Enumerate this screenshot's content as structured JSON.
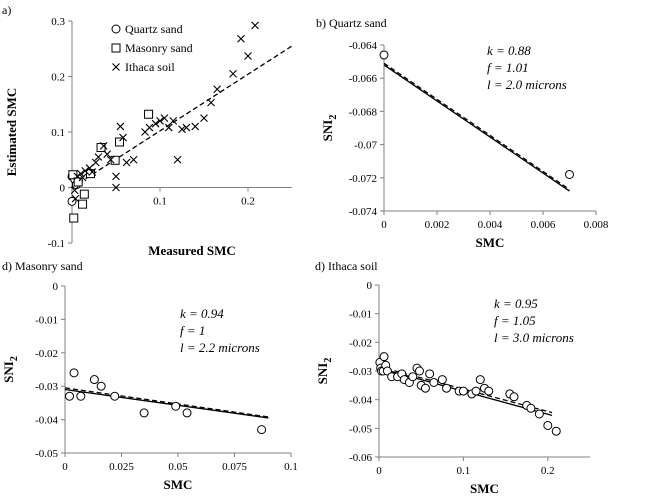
{
  "chart_data": [
    {
      "id": "a",
      "type": "scatter",
      "title": "a)",
      "xlabel": "Measured SMC",
      "ylabel": "Estimated SMC",
      "xlim": [
        0,
        0.25
      ],
      "ylim": [
        -0.1,
        0.3
      ],
      "xticks": [],
      "yticks": [
        {
          "v": -0.1,
          "label": "-0.1"
        },
        {
          "v": 0,
          "label": "0"
        },
        {
          "v": 0.1,
          "label": "0.1"
        },
        {
          "v": 0.2,
          "label": "0.2"
        },
        {
          "v": 0.3,
          "label": "0.3"
        }
      ],
      "xticks_labeled": [
        {
          "v": 0.1,
          "label": "0.1"
        },
        {
          "v": 0.2,
          "label": "0.2"
        }
      ],
      "legend": [
        {
          "marker": "circle",
          "label": "Quartz sand"
        },
        {
          "marker": "square",
          "label": "Masonry sand"
        },
        {
          "marker": "x",
          "label": "Ithaca soil"
        }
      ],
      "series": [
        {
          "name": "Quartz sand",
          "marker": "circle",
          "points": [
            [
              0,
              0.02
            ],
            [
              0,
              -0.025
            ],
            [
              0.003,
              0.015
            ],
            [
              0.005,
              0.005
            ],
            [
              0.007,
              0.01
            ]
          ]
        },
        {
          "name": "Masonry sand",
          "marker": "square",
          "points": [
            [
              0.001,
              0.023
            ],
            [
              0.002,
              -0.055
            ],
            [
              0.007,
              0.01
            ],
            [
              0.012,
              -0.03
            ],
            [
              0.014,
              -0.012
            ],
            [
              0.021,
              0.025
            ],
            [
              0.033,
              0.072
            ],
            [
              0.049,
              0.049
            ],
            [
              0.054,
              0.082
            ],
            [
              0.087,
              0.132
            ]
          ]
        },
        {
          "name": "Ithaca soil",
          "marker": "x",
          "points": [
            [
              0.003,
              -0.005
            ],
            [
              0.004,
              -0.02
            ],
            [
              0.006,
              0.02
            ],
            [
              0.01,
              0.025
            ],
            [
              0.012,
              0.018
            ],
            [
              0.015,
              0.03
            ],
            [
              0.02,
              0.035
            ],
            [
              0.023,
              0.028
            ],
            [
              0.027,
              0.045
            ],
            [
              0.03,
              0.055
            ],
            [
              0.036,
              0.075
            ],
            [
              0.04,
              0.06
            ],
            [
              0.044,
              0.05
            ],
            [
              0.05,
              0.0
            ],
            [
              0.05,
              0.02
            ],
            [
              0.055,
              0.11
            ],
            [
              0.058,
              0.09
            ],
            [
              0.062,
              0.045
            ],
            [
              0.07,
              0.05
            ],
            [
              0.083,
              0.1
            ],
            [
              0.088,
              0.108
            ],
            [
              0.095,
              0.115
            ],
            [
              0.1,
              0.12
            ],
            [
              0.105,
              0.125
            ],
            [
              0.11,
              0.108
            ],
            [
              0.115,
              0.12
            ],
            [
              0.12,
              0.05
            ],
            [
              0.125,
              0.105
            ],
            [
              0.13,
              0.108
            ],
            [
              0.14,
              0.11
            ],
            [
              0.15,
              0.125
            ],
            [
              0.158,
              0.153
            ],
            [
              0.165,
              0.177
            ],
            [
              0.183,
              0.205
            ],
            [
              0.192,
              0.268
            ],
            [
              0.2,
              0.237
            ],
            [
              0.208,
              0.292
            ]
          ]
        }
      ],
      "fit": {
        "dashed": [
          [
            0,
            0.0
          ],
          [
            0.25,
            0.255
          ]
        ]
      }
    },
    {
      "id": "b",
      "type": "scatter",
      "title": "b) Quartz sand",
      "xlabel": "SMC",
      "ylabel": "SNI",
      "ylabel_sub": "2",
      "xlim": [
        0,
        0.008
      ],
      "ylim": [
        -0.074,
        -0.064
      ],
      "xticks": [
        {
          "v": 0,
          "label": "0"
        },
        {
          "v": 0.002,
          "label": "0.002"
        },
        {
          "v": 0.004,
          "label": "0.004"
        },
        {
          "v": 0.006,
          "label": "0.006"
        },
        {
          "v": 0.008,
          "label": "0.008"
        }
      ],
      "yticks": [
        {
          "v": -0.064,
          "label": "-0.064"
        },
        {
          "v": -0.066,
          "label": "-0.066"
        },
        {
          "v": -0.068,
          "label": "-0.068"
        },
        {
          "v": -0.07,
          "label": "-0.07"
        },
        {
          "v": -0.072,
          "label": "-0.072"
        },
        {
          "v": -0.074,
          "label": "-0.074"
        }
      ],
      "annotations": [
        "k = 0.88",
        "f = 1.01",
        "l = 2.0 microns"
      ],
      "points": [
        [
          0,
          -0.0646
        ],
        [
          0.007,
          -0.0718
        ]
      ],
      "fit": {
        "solid": [
          [
            0,
            -0.0652
          ],
          [
            0.007,
            -0.0728
          ]
        ],
        "dashed": [
          [
            0,
            -0.0651
          ],
          [
            0.007,
            -0.0727
          ]
        ]
      }
    },
    {
      "id": "c",
      "type": "scatter",
      "title": "d) Masonry sand",
      "xlabel": "SMC",
      "ylabel": "SNI",
      "ylabel_sub": "2",
      "xlim": [
        0,
        0.1
      ],
      "ylim": [
        -0.05,
        0
      ],
      "xticks": [
        {
          "v": 0,
          "label": "0"
        },
        {
          "v": 0.025,
          "label": "0.025"
        },
        {
          "v": 0.05,
          "label": "0.05"
        },
        {
          "v": 0.075,
          "label": "0.075"
        },
        {
          "v": 0.1,
          "label": "0.1"
        }
      ],
      "yticks": [
        {
          "v": 0,
          "label": "0"
        },
        {
          "v": -0.01,
          "label": "-0.01"
        },
        {
          "v": -0.02,
          "label": "-0.02"
        },
        {
          "v": -0.03,
          "label": "-0.03"
        },
        {
          "v": -0.04,
          "label": "-0.04"
        },
        {
          "v": -0.05,
          "label": "-0.05"
        }
      ],
      "annotations": [
        "k = 0.94",
        "f = 1",
        "l = 2.2 microns"
      ],
      "points": [
        [
          0.002,
          -0.033
        ],
        [
          0.004,
          -0.026
        ],
        [
          0.007,
          -0.033
        ],
        [
          0.013,
          -0.028
        ],
        [
          0.016,
          -0.03
        ],
        [
          0.022,
          -0.033
        ],
        [
          0.035,
          -0.038
        ],
        [
          0.049,
          -0.036
        ],
        [
          0.054,
          -0.038
        ],
        [
          0.087,
          -0.043
        ]
      ],
      "fit": {
        "solid": [
          [
            0,
            -0.031
          ],
          [
            0.09,
            -0.0395
          ]
        ],
        "dashed": [
          [
            0,
            -0.0305
          ],
          [
            0.09,
            -0.0392
          ]
        ]
      }
    },
    {
      "id": "d",
      "type": "scatter",
      "title": "d) Ithaca soil",
      "xlabel": "SMC",
      "ylabel": "SNI",
      "ylabel_sub": "2",
      "xlim": [
        0,
        0.25
      ],
      "ylim": [
        -0.06,
        0
      ],
      "xticks": [
        {
          "v": 0,
          "label": "0"
        },
        {
          "v": 0.1,
          "label": "0.1"
        },
        {
          "v": 0.2,
          "label": "0.2"
        }
      ],
      "yticks": [
        {
          "v": 0,
          "label": "0"
        },
        {
          "v": -0.01,
          "label": "-0.01"
        },
        {
          "v": -0.02,
          "label": "-0.02"
        },
        {
          "v": -0.03,
          "label": "-0.03"
        },
        {
          "v": -0.04,
          "label": "-0.04"
        },
        {
          "v": -0.05,
          "label": "-0.05"
        },
        {
          "v": -0.06,
          "label": "-0.06"
        }
      ],
      "annotations": [
        "k = 0.95",
        "f = 1.05",
        "l = 3.0 microns"
      ],
      "points": [
        [
          0.001,
          -0.027
        ],
        [
          0.002,
          -0.029
        ],
        [
          0.003,
          -0.03
        ],
        [
          0.005,
          -0.03
        ],
        [
          0.006,
          -0.025
        ],
        [
          0.008,
          -0.028
        ],
        [
          0.01,
          -0.03
        ],
        [
          0.015,
          -0.032
        ],
        [
          0.022,
          -0.032
        ],
        [
          0.027,
          -0.031
        ],
        [
          0.03,
          -0.033
        ],
        [
          0.036,
          -0.034
        ],
        [
          0.04,
          -0.032
        ],
        [
          0.045,
          -0.029
        ],
        [
          0.048,
          -0.03
        ],
        [
          0.05,
          -0.035
        ],
        [
          0.055,
          -0.036
        ],
        [
          0.06,
          -0.031
        ],
        [
          0.065,
          -0.034
        ],
        [
          0.075,
          -0.033
        ],
        [
          0.08,
          -0.036
        ],
        [
          0.095,
          -0.037
        ],
        [
          0.1,
          -0.037
        ],
        [
          0.11,
          -0.038
        ],
        [
          0.115,
          -0.037
        ],
        [
          0.12,
          -0.033
        ],
        [
          0.125,
          -0.036
        ],
        [
          0.13,
          -0.037
        ],
        [
          0.155,
          -0.038
        ],
        [
          0.16,
          -0.039
        ],
        [
          0.175,
          -0.042
        ],
        [
          0.18,
          -0.043
        ],
        [
          0.19,
          -0.045
        ],
        [
          0.2,
          -0.049
        ],
        [
          0.21,
          -0.051
        ]
      ],
      "fit": {
        "solid": [
          [
            0,
            -0.029
          ],
          [
            0.205,
            -0.0455
          ]
        ],
        "dashed": [
          [
            0,
            -0.0285
          ],
          [
            0.205,
            -0.0445
          ]
        ]
      }
    }
  ]
}
